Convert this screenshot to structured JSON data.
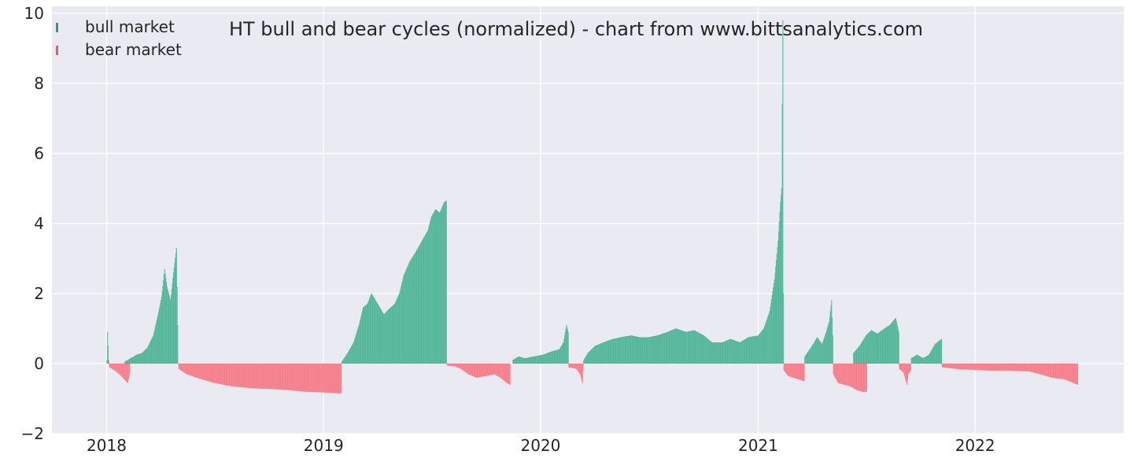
{
  "chart_data": {
    "type": "bar",
    "title": "HT bull and bear cycles (normalized)  - chart from www.bittsanalytics.com",
    "xlabel": "",
    "ylabel": "",
    "ylim": [
      -2,
      10.2
    ],
    "xlim": [
      "2017-10-01",
      "2022-09-08"
    ],
    "yticks": [
      -2,
      0,
      2,
      4,
      6,
      8,
      10
    ],
    "xticks": [
      "2018-01-01",
      "2019-01-01",
      "2020-01-01",
      "2021-01-01",
      "2022-01-01"
    ],
    "xtick_labels": [
      "2018",
      "2019",
      "2020",
      "2021",
      "2022"
    ],
    "grid": true,
    "legend": {
      "position": "top-left"
    },
    "colors": {
      "background": "#eaeaf2",
      "grid": "#ffffff",
      "bull": "#66c2a5",
      "bull_edge": "#2e9a80",
      "bear": "#fc8d98",
      "bear_edge": "#e0606e"
    },
    "series": [
      {
        "name": "bull market",
        "key": "bull",
        "segments": [
          {
            "points": [
              [
                "2018-01-01",
                0.1
              ],
              [
                "2018-01-02",
                0.9
              ],
              [
                "2018-01-04",
                0.1
              ]
            ]
          },
          {
            "points": [
              [
                "2018-01-31",
                0.05
              ],
              [
                "2018-02-10",
                0.15
              ],
              [
                "2018-02-20",
                0.25
              ],
              [
                "2018-03-01",
                0.3
              ],
              [
                "2018-03-10",
                0.45
              ],
              [
                "2018-03-20",
                0.8
              ],
              [
                "2018-03-28",
                1.4
              ],
              [
                "2018-04-03",
                1.9
              ],
              [
                "2018-04-08",
                2.7
              ],
              [
                "2018-04-12",
                2.2
              ],
              [
                "2018-04-18",
                1.8
              ],
              [
                "2018-04-23",
                2.6
              ],
              [
                "2018-04-28",
                3.3
              ],
              [
                "2018-05-01",
                0.0
              ]
            ]
          },
          {
            "points": [
              [
                "2019-01-31",
                0.05
              ],
              [
                "2019-02-10",
                0.3
              ],
              [
                "2019-02-20",
                0.6
              ],
              [
                "2019-03-01",
                1.1
              ],
              [
                "2019-03-08",
                1.6
              ],
              [
                "2019-03-15",
                1.7
              ],
              [
                "2019-03-22",
                2.0
              ],
              [
                "2019-03-29",
                1.8
              ],
              [
                "2019-04-05",
                1.6
              ],
              [
                "2019-04-12",
                1.4
              ],
              [
                "2019-04-20",
                1.55
              ],
              [
                "2019-04-30",
                1.7
              ],
              [
                "2019-05-08",
                2.0
              ],
              [
                "2019-05-15",
                2.5
              ],
              [
                "2019-05-25",
                2.9
              ],
              [
                "2019-06-05",
                3.2
              ],
              [
                "2019-06-15",
                3.5
              ],
              [
                "2019-06-25",
                3.8
              ],
              [
                "2019-07-01",
                4.2
              ],
              [
                "2019-07-08",
                4.4
              ],
              [
                "2019-07-15",
                4.3
              ],
              [
                "2019-07-22",
                4.6
              ],
              [
                "2019-07-26",
                4.65
              ]
            ]
          },
          {
            "points": [
              [
                "2019-11-15",
                0.1
              ],
              [
                "2019-11-25",
                0.2
              ],
              [
                "2019-12-05",
                0.15
              ],
              [
                "2019-12-20",
                0.2
              ],
              [
                "2020-01-05",
                0.25
              ],
              [
                "2020-01-20",
                0.35
              ],
              [
                "2020-02-01",
                0.4
              ],
              [
                "2020-02-08",
                0.6
              ],
              [
                "2020-02-13",
                1.1
              ],
              [
                "2020-02-16",
                0.9
              ]
            ]
          },
          {
            "points": [
              [
                "2020-03-13",
                0.1
              ],
              [
                "2020-03-20",
                0.3
              ],
              [
                "2020-04-01",
                0.5
              ],
              [
                "2020-04-15",
                0.6
              ],
              [
                "2020-05-01",
                0.7
              ],
              [
                "2020-05-15",
                0.75
              ],
              [
                "2020-06-01",
                0.8
              ],
              [
                "2020-06-15",
                0.75
              ],
              [
                "2020-07-01",
                0.75
              ],
              [
                "2020-07-15",
                0.8
              ],
              [
                "2020-08-01",
                0.9
              ],
              [
                "2020-08-15",
                1.0
              ],
              [
                "2020-09-01",
                0.9
              ],
              [
                "2020-09-15",
                0.95
              ],
              [
                "2020-10-01",
                0.8
              ],
              [
                "2020-10-15",
                0.6
              ],
              [
                "2020-11-01",
                0.6
              ],
              [
                "2020-11-15",
                0.7
              ],
              [
                "2020-12-01",
                0.6
              ],
              [
                "2020-12-15",
                0.75
              ],
              [
                "2021-01-01",
                0.8
              ],
              [
                "2021-01-10",
                1.0
              ],
              [
                "2021-01-20",
                1.5
              ],
              [
                "2021-01-28",
                2.4
              ],
              [
                "2021-02-03",
                3.5
              ],
              [
                "2021-02-07",
                4.6
              ],
              [
                "2021-02-09",
                5.0
              ],
              [
                "2021-02-11",
                9.8
              ],
              [
                "2021-02-12",
                2.0
              ]
            ]
          },
          {
            "points": [
              [
                "2021-03-20",
                0.2
              ],
              [
                "2021-04-01",
                0.5
              ],
              [
                "2021-04-10",
                0.75
              ],
              [
                "2021-04-18",
                0.55
              ],
              [
                "2021-04-25",
                0.9
              ],
              [
                "2021-04-30",
                1.2
              ],
              [
                "2021-05-04",
                1.8
              ],
              [
                "2021-05-06",
                0.8
              ]
            ]
          },
          {
            "points": [
              [
                "2021-06-10",
                0.3
              ],
              [
                "2021-06-20",
                0.5
              ],
              [
                "2021-07-01",
                0.8
              ],
              [
                "2021-07-10",
                0.95
              ],
              [
                "2021-07-20",
                0.85
              ],
              [
                "2021-08-01",
                1.0
              ],
              [
                "2021-08-10",
                1.1
              ],
              [
                "2021-08-20",
                1.3
              ],
              [
                "2021-08-25",
                0.9
              ]
            ]
          },
          {
            "points": [
              [
                "2021-09-15",
                0.15
              ],
              [
                "2021-09-25",
                0.25
              ],
              [
                "2021-10-05",
                0.15
              ],
              [
                "2021-10-15",
                0.25
              ],
              [
                "2021-10-25",
                0.55
              ],
              [
                "2021-11-01",
                0.65
              ],
              [
                "2021-11-05",
                0.7
              ]
            ]
          }
        ]
      },
      {
        "name": "bear market",
        "key": "bear",
        "segments": [
          {
            "points": [
              [
                "2018-01-05",
                -0.1
              ],
              [
                "2018-01-15",
                -0.2
              ],
              [
                "2018-01-25",
                -0.35
              ],
              [
                "2018-02-05",
                -0.55
              ],
              [
                "2018-02-08",
                -0.3
              ]
            ]
          },
          {
            "points": [
              [
                "2018-05-02",
                -0.15
              ],
              [
                "2018-05-15",
                -0.3
              ],
              [
                "2018-06-01",
                -0.4
              ],
              [
                "2018-07-01",
                -0.55
              ],
              [
                "2018-08-01",
                -0.65
              ],
              [
                "2018-09-01",
                -0.7
              ],
              [
                "2018-10-01",
                -0.72
              ],
              [
                "2018-11-01",
                -0.75
              ],
              [
                "2018-12-01",
                -0.8
              ],
              [
                "2019-01-01",
                -0.82
              ],
              [
                "2019-01-30",
                -0.85
              ]
            ]
          },
          {
            "points": [
              [
                "2019-07-27",
                -0.05
              ],
              [
                "2019-08-10",
                -0.08
              ],
              [
                "2019-08-20",
                -0.15
              ],
              [
                "2019-09-01",
                -0.3
              ],
              [
                "2019-09-15",
                -0.4
              ],
              [
                "2019-10-01",
                -0.35
              ],
              [
                "2019-10-15",
                -0.3
              ],
              [
                "2019-10-25",
                -0.4
              ],
              [
                "2019-11-05",
                -0.55
              ],
              [
                "2019-11-10",
                -0.6
              ]
            ]
          },
          {
            "points": [
              [
                "2020-02-17",
                -0.1
              ],
              [
                "2020-03-01",
                -0.15
              ],
              [
                "2020-03-07",
                -0.3
              ],
              [
                "2020-03-11",
                -0.55
              ],
              [
                "2020-03-12",
                -0.2
              ]
            ]
          },
          {
            "points": [
              [
                "2021-02-13",
                -0.2
              ],
              [
                "2021-02-20",
                -0.35
              ],
              [
                "2021-03-01",
                -0.4
              ],
              [
                "2021-03-10",
                -0.45
              ],
              [
                "2021-03-19",
                -0.5
              ]
            ]
          },
          {
            "points": [
              [
                "2021-05-07",
                -0.3
              ],
              [
                "2021-05-15",
                -0.55
              ],
              [
                "2021-05-25",
                -0.6
              ],
              [
                "2021-06-05",
                -0.65
              ],
              [
                "2021-06-15",
                -0.75
              ],
              [
                "2021-06-25",
                -0.8
              ],
              [
                "2021-07-02",
                -0.8
              ]
            ]
          },
          {
            "points": [
              [
                "2021-08-26",
                -0.15
              ],
              [
                "2021-09-02",
                -0.25
              ],
              [
                "2021-09-08",
                -0.6
              ],
              [
                "2021-09-10",
                -0.3
              ],
              [
                "2021-09-14",
                -0.2
              ]
            ]
          },
          {
            "points": [
              [
                "2021-11-06",
                -0.1
              ],
              [
                "2021-12-01",
                -0.15
              ],
              [
                "2022-01-01",
                -0.18
              ],
              [
                "2022-02-01",
                -0.2
              ],
              [
                "2022-03-01",
                -0.2
              ],
              [
                "2022-04-01",
                -0.22
              ],
              [
                "2022-04-20",
                -0.3
              ],
              [
                "2022-05-10",
                -0.4
              ],
              [
                "2022-06-01",
                -0.45
              ],
              [
                "2022-06-15",
                -0.55
              ],
              [
                "2022-06-22",
                -0.6
              ]
            ]
          }
        ]
      }
    ]
  }
}
